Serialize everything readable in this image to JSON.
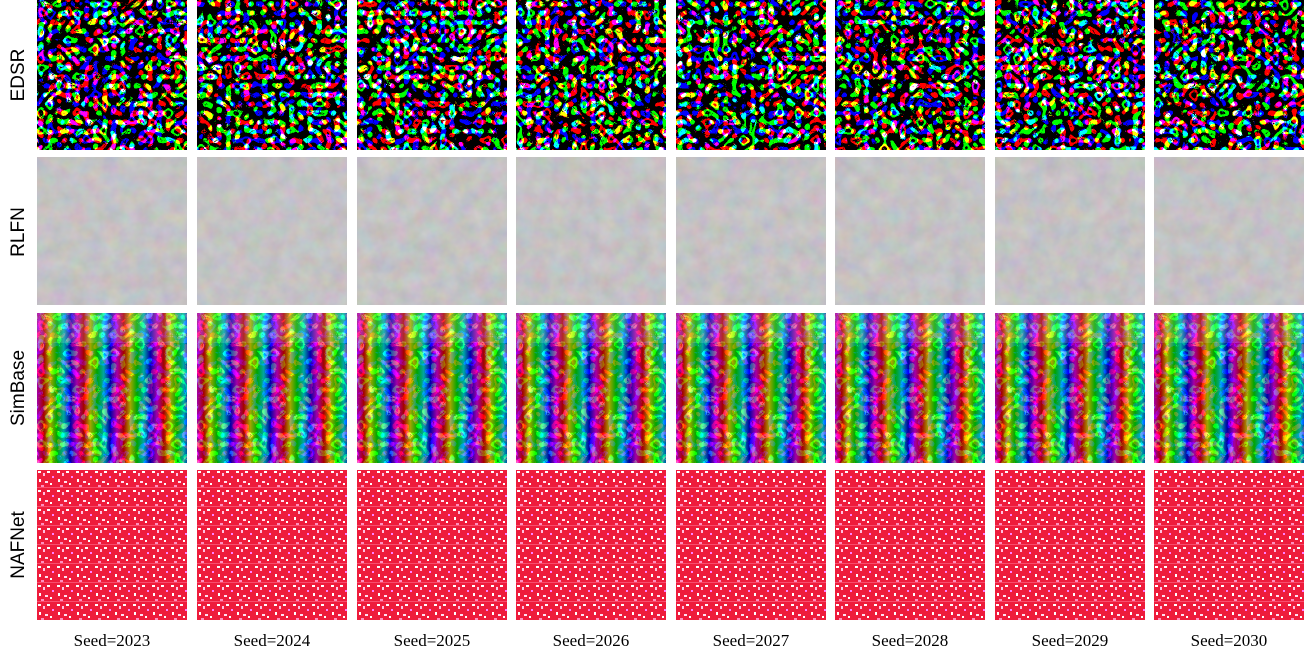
{
  "row_labels": [
    "EDSR",
    "RLFN",
    "SimBase",
    "NAFNet"
  ],
  "column_labels": [
    "Seed=2023",
    "Seed=2024",
    "Seed=2025",
    "Seed=2026",
    "Seed=2027",
    "Seed=2028",
    "Seed=2029",
    "Seed=2030"
  ]
}
